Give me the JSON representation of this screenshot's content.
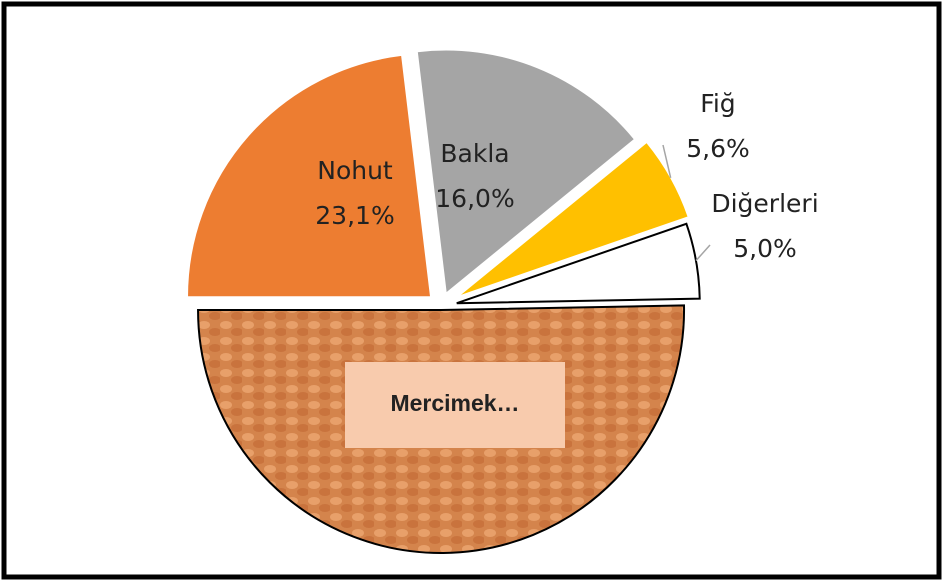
{
  "chart_data": {
    "type": "pie",
    "categories": [
      "Nohut",
      "Bakla",
      "Fiğ",
      "Diğerleri",
      "Mercimek…"
    ],
    "values": [
      23.1,
      16.0,
      5.6,
      5.0,
      50.3
    ],
    "value_labels": [
      "23,1%",
      "16,0%",
      "5,6%",
      "5,0%",
      null
    ],
    "colors": [
      "#ed7d31",
      "#a5a5a5",
      "#ffc000",
      "#ffffff",
      "#d4844c"
    ]
  }
}
